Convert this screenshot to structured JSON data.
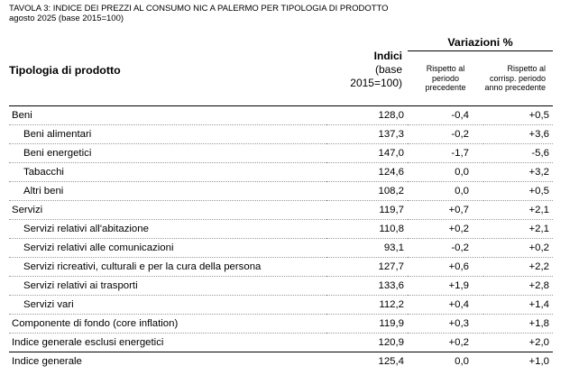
{
  "caption": {
    "title": "TAVOLA 3: INDICE DEI PREZZI AL CONSUMO NIC A PALERMO PER TIPOLOGIA DI PRODOTTO",
    "subtitle": "agosto 2025 (base 2015=100)"
  },
  "header": {
    "col1": "Tipologia di prodotto",
    "indici_line1": "Indici",
    "indici_line2": "(base",
    "indici_line3": "2015=100)",
    "variazioni": "Variazioni  %",
    "sub1_l1": "Rispetto al",
    "sub1_l2": "periodo",
    "sub1_l3": "precedente",
    "sub2_l1": "Rispetto al",
    "sub2_l2": "corrisp. periodo",
    "sub2_l3": "anno precedente"
  },
  "rows": [
    {
      "label": "Beni",
      "indice": "128,0",
      "var_prec": "-0,4",
      "var_anno": "+0,5"
    },
    {
      "label": "Beni alimentari",
      "indice": "137,3",
      "var_prec": "-0,2",
      "var_anno": "+3,6"
    },
    {
      "label": "Beni energetici",
      "indice": "147,0",
      "var_prec": "-1,7",
      "var_anno": "-5,6"
    },
    {
      "label": "Tabacchi",
      "indice": "124,6",
      "var_prec": "0,0",
      "var_anno": "+3,2"
    },
    {
      "label": "Altri beni",
      "indice": "108,2",
      "var_prec": "0,0",
      "var_anno": "+0,5"
    },
    {
      "label": "Servizi",
      "indice": "119,7",
      "var_prec": "+0,7",
      "var_anno": "+2,1"
    },
    {
      "label": "Servizi relativi all'abitazione",
      "indice": "110,8",
      "var_prec": "+0,2",
      "var_anno": "+2,1"
    },
    {
      "label": "Servizi relativi alle comunicazioni",
      "indice": "93,1",
      "var_prec": "-0,2",
      "var_anno": "+0,2"
    },
    {
      "label": "Servizi ricreativi, culturali e per la cura della persona",
      "indice": "127,7",
      "var_prec": "+0,6",
      "var_anno": "+2,2"
    },
    {
      "label": "Servizi relativi ai trasporti",
      "indice": "133,6",
      "var_prec": "+1,9",
      "var_anno": "+2,8"
    },
    {
      "label": "Servizi vari",
      "indice": "112,2",
      "var_prec": "+0,4",
      "var_anno": "+1,4"
    },
    {
      "label": "Componente di fondo (core inflation)",
      "indice": "119,9",
      "var_prec": "+0,3",
      "var_anno": "+1,8"
    },
    {
      "label": "Indice generale esclusi energetici",
      "indice": "120,9",
      "var_prec": "+0,2",
      "var_anno": "+2,0"
    },
    {
      "label": "Indice generale",
      "indice": "125,4",
      "var_prec": "0,0",
      "var_anno": "+1,0"
    }
  ]
}
